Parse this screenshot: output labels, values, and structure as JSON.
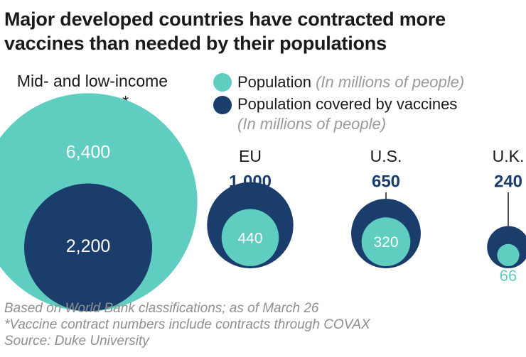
{
  "title": {
    "line1": "Major developed countries have contracted more",
    "line2": "vaccines than needed by their populations"
  },
  "legend": {
    "population_label": "Population",
    "population_note": "(In millions of people)",
    "covered_label": "Population covered by vaccines",
    "covered_note": "(In millions of people)"
  },
  "colors": {
    "population": "#5fcdbf",
    "covered": "#1b3d6b",
    "value_dark": "#1b3d6b",
    "value_light": "#5fcdbf",
    "footnote": "#8f8f8f"
  },
  "chart_data": {
    "type": "nested-bubble",
    "title": "Major developed countries have contracted more vaccines than needed by their populations",
    "units": "millions of people",
    "groups": [
      {
        "name": "Mid- and low-income countries*",
        "label_line1": "Mid- and low-income",
        "label_line2": "countries*",
        "population": 6400,
        "covered": 2200,
        "population_label": "6,400",
        "covered_label": "2,200"
      },
      {
        "name": "EU",
        "population": 440,
        "covered": 1000,
        "population_label": "440",
        "covered_label": "1,000"
      },
      {
        "name": "U.S.",
        "population": 320,
        "covered": 650,
        "population_label": "320",
        "covered_label": "650"
      },
      {
        "name": "U.K.",
        "population": 66,
        "covered": 240,
        "population_label": "66",
        "covered_label": "240"
      }
    ]
  },
  "footnotes": {
    "line1": "Based on World Bank classifications; as of March 26",
    "line2": "*Vaccine contract numbers include contracts through COVAX",
    "line3": "Source: Duke University"
  }
}
